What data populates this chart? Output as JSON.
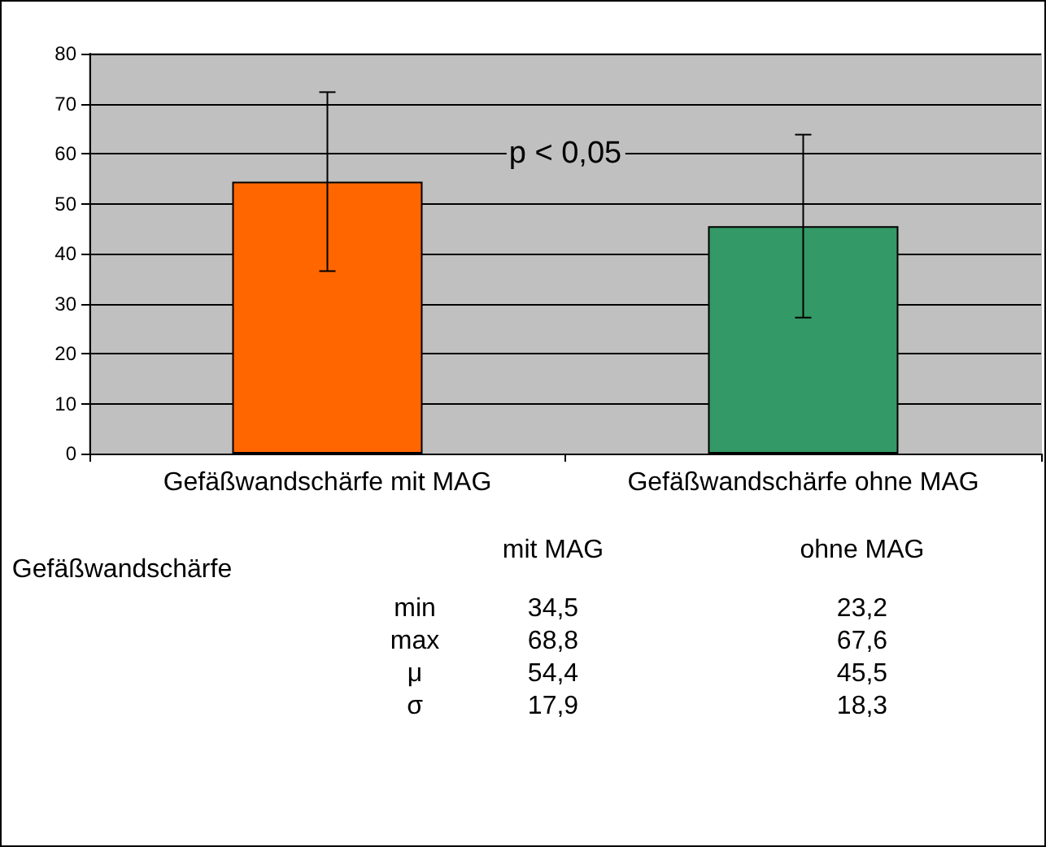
{
  "chart_data": {
    "type": "bar",
    "categories": [
      "Gefäßwandschärfe mit MAG",
      "Gefäßwandschärfe ohne MAG"
    ],
    "values": [
      54.4,
      45.5
    ],
    "colors": [
      "#ff6600",
      "#339966"
    ],
    "errors": [
      17.9,
      18.3
    ],
    "ylim": [
      0,
      80
    ],
    "yticks": [
      0,
      10,
      20,
      30,
      40,
      50,
      60,
      70,
      80
    ],
    "grid": "y",
    "annotations": [
      "p < 0,05",
      "Gefäßwandschärfe",
      "mit MAG",
      "ohne MAG",
      "min",
      "34,5",
      "23,2",
      "max",
      "68,8",
      "67,6",
      "μ",
      "54,4",
      "45,5",
      "σ",
      "17,9",
      "18,3"
    ]
  }
}
